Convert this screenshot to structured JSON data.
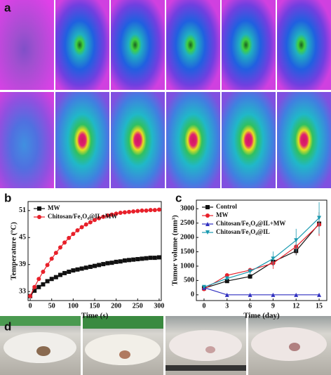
{
  "panel_labels": [
    "a",
    "b",
    "c",
    "d"
  ],
  "chart_data": [
    {
      "type": "line",
      "x_label": "Time (s)",
      "y_label": "Temperature (ºC)",
      "x": [
        0,
        10,
        20,
        30,
        40,
        50,
        60,
        70,
        80,
        90,
        100,
        110,
        120,
        130,
        140,
        150,
        160,
        170,
        180,
        190,
        200,
        210,
        220,
        230,
        240,
        250,
        260,
        270,
        280,
        290,
        300
      ],
      "xlim": [
        -5,
        305
      ],
      "xticks": [
        0,
        50,
        100,
        150,
        200,
        250,
        300
      ],
      "ylim": [
        31,
        53
      ],
      "yticks": [
        33,
        39,
        45,
        51
      ],
      "legend": "upper left",
      "series": [
        {
          "name": "MW",
          "color": "#111111",
          "marker": "square",
          "values": [
            32,
            33.2,
            34,
            34.6,
            35.3,
            35.8,
            36.2,
            36.7,
            37.1,
            37.4,
            37.7,
            37.9,
            38.1,
            38.3,
            38.5,
            38.7,
            38.9,
            39.1,
            39.3,
            39.4,
            39.6,
            39.7,
            39.9,
            40.0,
            40.1,
            40.2,
            40.3,
            40.4,
            40.5,
            40.5,
            40.6
          ]
        },
        {
          "name": "Chitosan/Fe₃O₄@IL+MW",
          "color": "#e8202a",
          "marker": "circle",
          "values": [
            32,
            34,
            35.8,
            37.4,
            38.9,
            40.3,
            41.6,
            42.8,
            43.9,
            44.9,
            45.8,
            46.6,
            47.3,
            47.9,
            48.4,
            48.9,
            49.3,
            49.6,
            49.9,
            50.1,
            50.3,
            50.5,
            50.6,
            50.7,
            50.8,
            50.9,
            51.0,
            51.0,
            51.1,
            51.1,
            51.2
          ]
        }
      ]
    },
    {
      "type": "line",
      "x_label": "Time (day)",
      "y_label": "Tumor volume (mm³)",
      "x": [
        0,
        3,
        6,
        9,
        12,
        15
      ],
      "xlim": [
        -1,
        16
      ],
      "xticks": [
        0,
        3,
        6,
        9,
        12,
        15
      ],
      "ylim": [
        -200,
        3300
      ],
      "yticks": [
        0,
        500,
        1000,
        1500,
        2000,
        2500,
        3000
      ],
      "legend": "upper left",
      "series": [
        {
          "name": "Control",
          "color": "#111111",
          "marker": "square",
          "values": [
            230,
            480,
            640,
            1150,
            1530,
            2480
          ],
          "errors": [
            40,
            60,
            80,
            150,
            150,
            400
          ]
        },
        {
          "name": "MW",
          "color": "#e8202a",
          "marker": "circle",
          "values": [
            200,
            680,
            860,
            1100,
            1680,
            2450
          ],
          "errors": [
            40,
            60,
            80,
            200,
            200,
            400
          ]
        },
        {
          "name": "Chitosan/Fe₃O₄@IL+MW",
          "color": "#3030c0",
          "marker": "triangle",
          "values": [
            250,
            0,
            0,
            0,
            0,
            0
          ],
          "errors": [
            40,
            10,
            10,
            10,
            10,
            10
          ]
        },
        {
          "name": "Chitosan/Fe₃O₄@IL",
          "color": "#1a9ab0",
          "marker": "triangle-down",
          "values": [
            270,
            570,
            810,
            1260,
            1900,
            2680
          ],
          "errors": [
            40,
            60,
            100,
            250,
            400,
            550
          ]
        }
      ]
    }
  ]
}
